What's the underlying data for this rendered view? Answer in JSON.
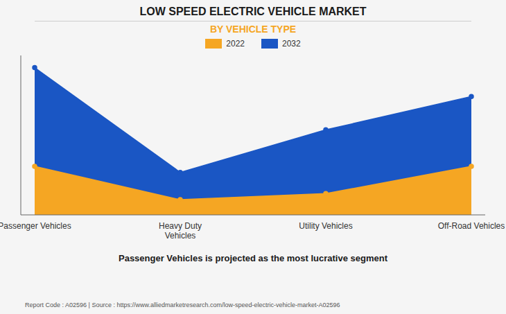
{
  "chart_data": {
    "type": "area",
    "title": "LOW SPEED ELECTRIC VEHICLE MARKET",
    "subtitle": "BY VEHICLE TYPE",
    "categories": [
      "Passenger Vehicles",
      "Heavy Duty\nVehicles",
      "Utility Vehicles",
      "Off-Road Vehicles"
    ],
    "series": [
      {
        "name": "2022",
        "color": "#F5A623",
        "values": [
          0.32,
          0.1,
          0.14,
          0.32
        ]
      },
      {
        "name": "2032",
        "color": "#1A56C4",
        "values": [
          0.97,
          0.28,
          0.56,
          0.78
        ]
      }
    ],
    "ylim": [
      0,
      1.05
    ],
    "tick_labels": "x",
    "grid": false,
    "legend": "top",
    "marker": "circle",
    "annotations": [
      "Passenger Vehicles is projected as the most lucrative segment",
      "Report Code : A02596  |  Source : https://www.alliedmarketresearch.com/low-speed-electric-vehicle-market-A02596"
    ]
  }
}
